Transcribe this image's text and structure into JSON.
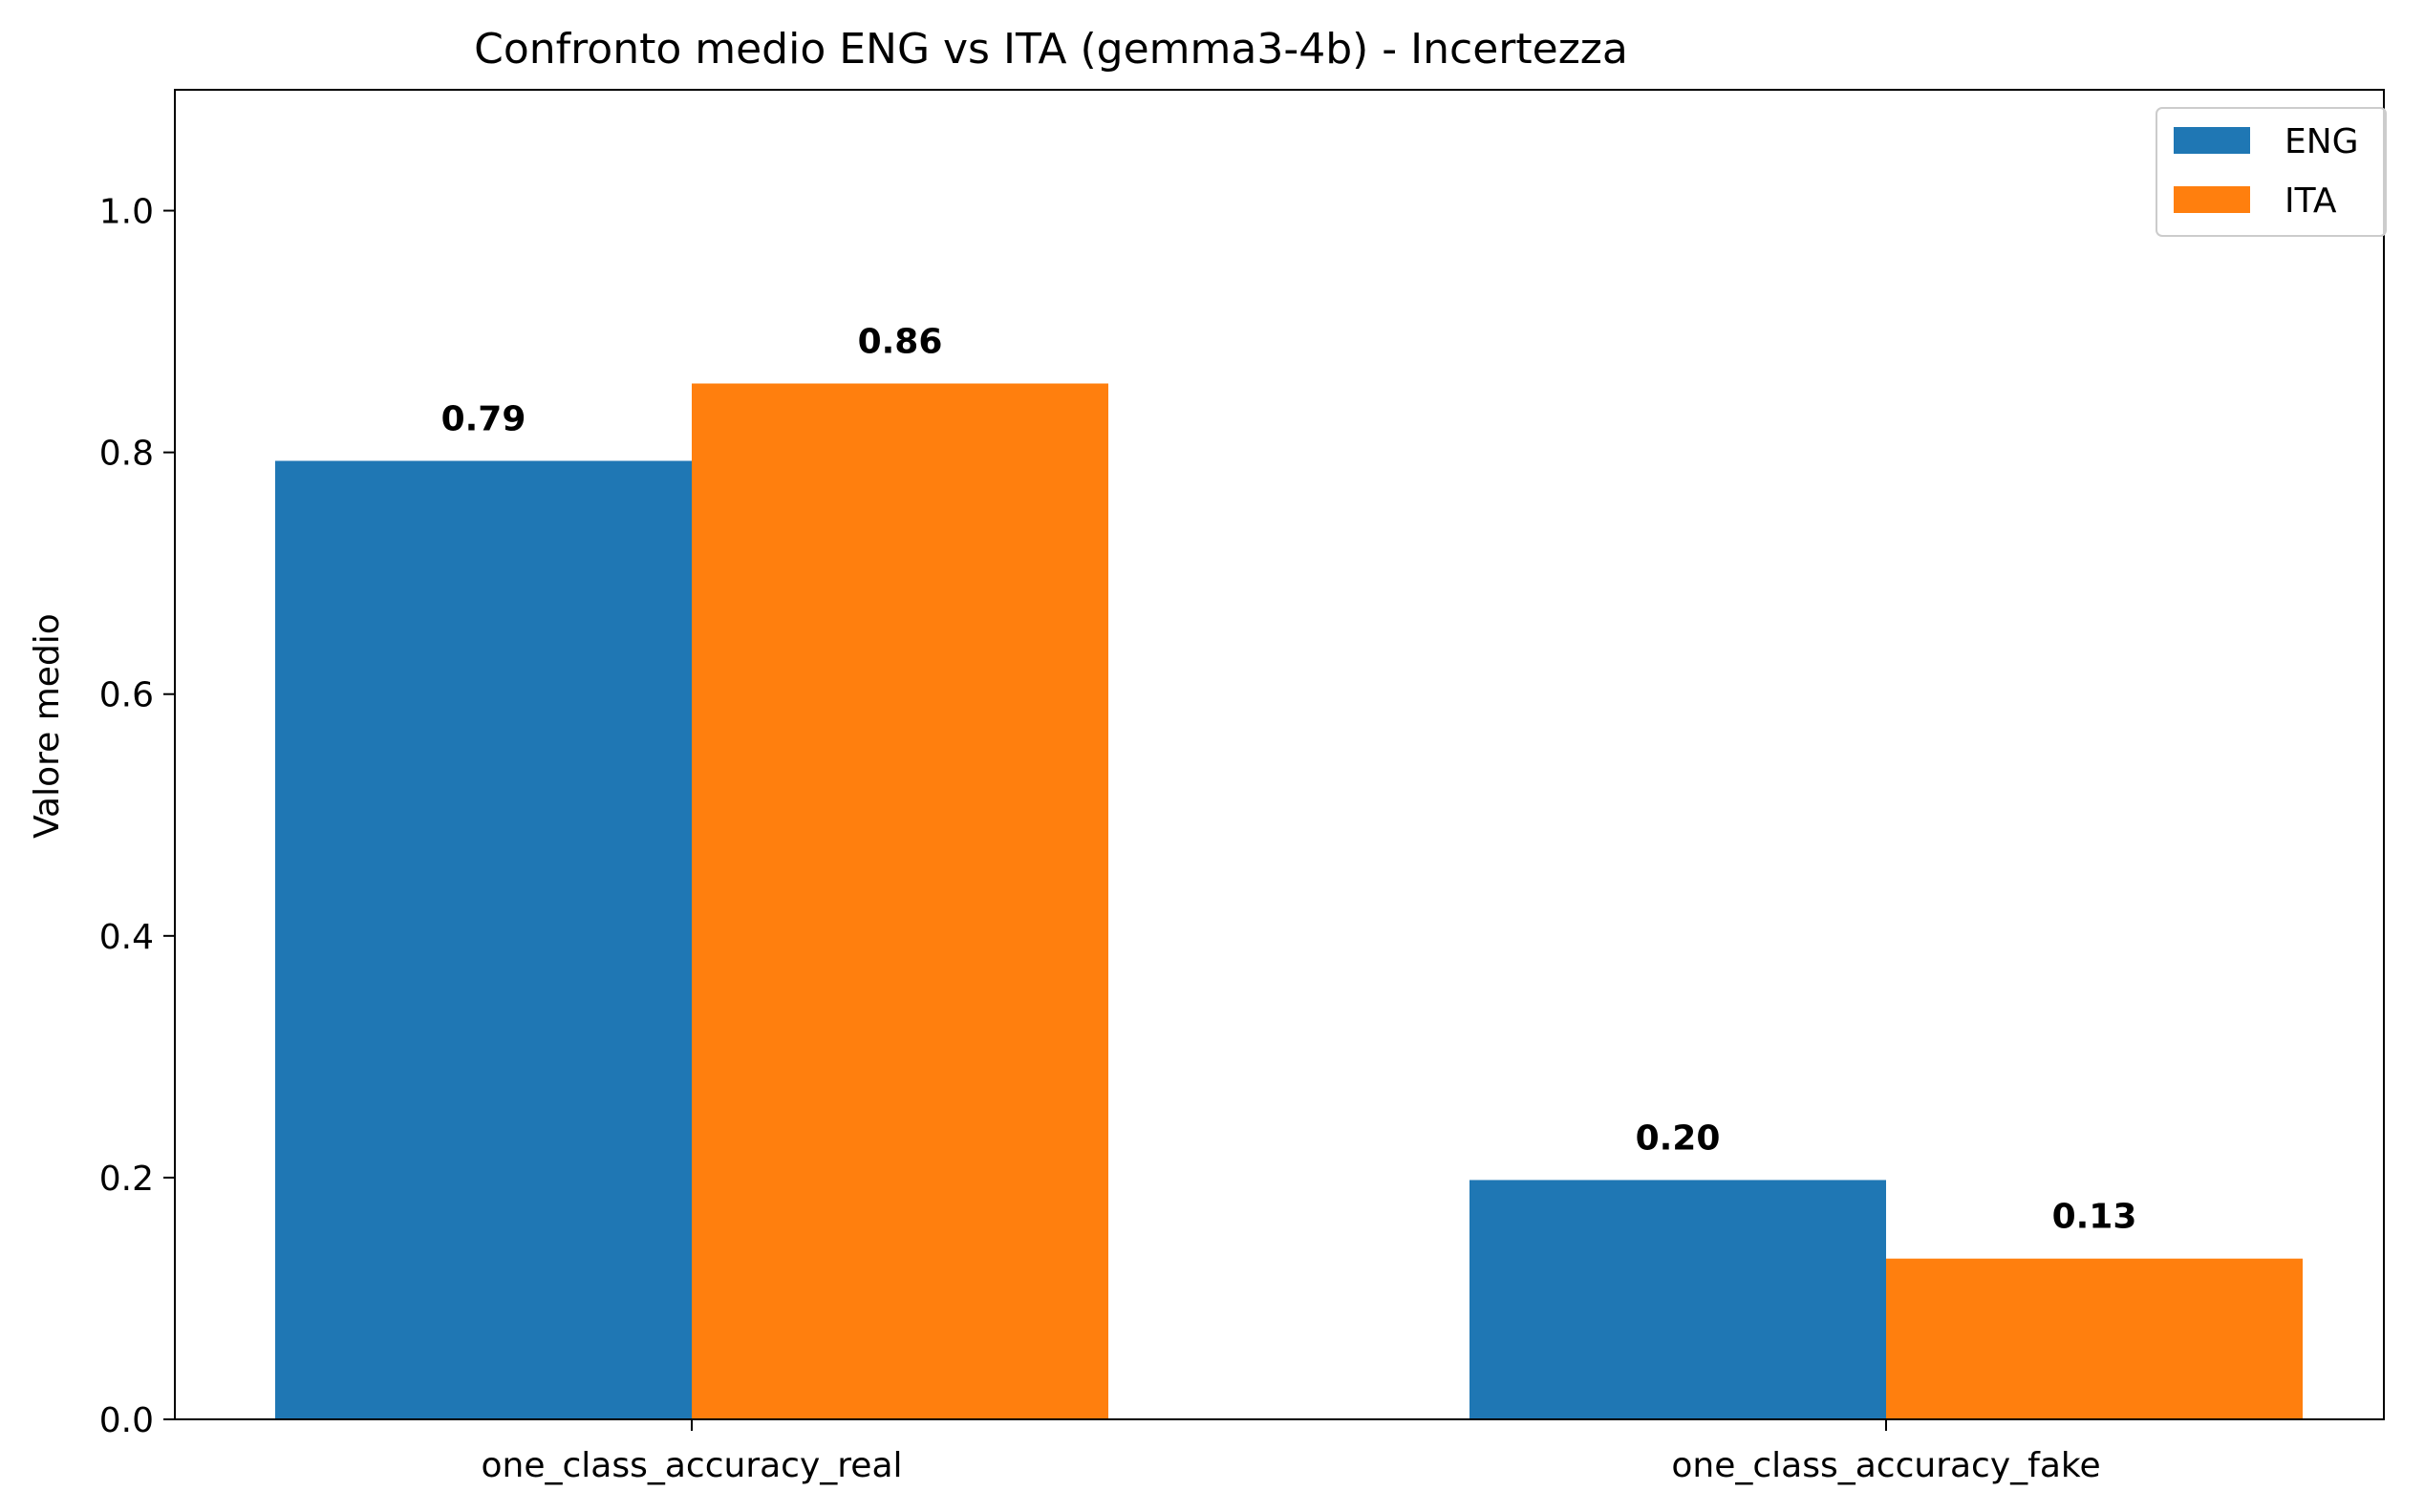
{
  "chart_data": {
    "type": "bar",
    "title": "Confronto medio ENG vs ITA (gemma3-4b) - Incertezza",
    "xlabel": "",
    "ylabel": "Valore medio",
    "categories": [
      "one_class_accuracy_real",
      "one_class_accuracy_fake"
    ],
    "series": [
      {
        "name": "ENG",
        "values": [
          0.793,
          0.198
        ],
        "labels": [
          "0.79",
          "0.20"
        ],
        "color": "#1f77b4"
      },
      {
        "name": "ITA",
        "values": [
          0.857,
          0.133
        ],
        "labels": [
          "0.86",
          "0.13"
        ],
        "color": "#ff7f0e"
      }
    ],
    "ylim": [
      0,
      1.1
    ],
    "yticks": [
      0.0,
      0.2,
      0.4,
      0.6,
      0.8,
      1.0
    ],
    "ytick_labels": [
      "0.0",
      "0.2",
      "0.4",
      "0.6",
      "0.8",
      "1.0"
    ],
    "grid": false,
    "legend_position": "top-right"
  }
}
